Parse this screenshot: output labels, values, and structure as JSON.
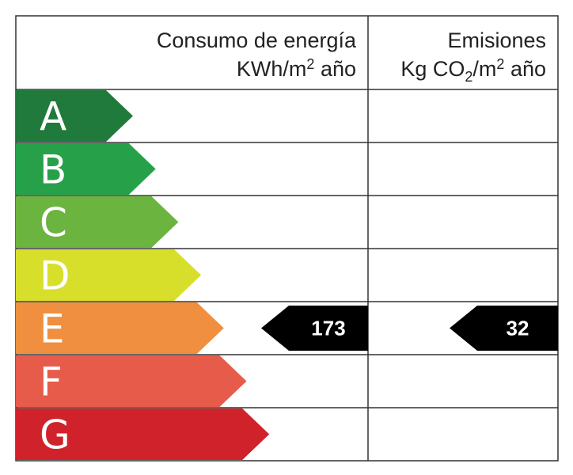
{
  "header": {
    "energy": {
      "line1": "Consumo de energía",
      "line2": [
        "KWh/m",
        "2",
        " año"
      ]
    },
    "emissions": {
      "line1": "Emisiones",
      "line2": [
        "Kg CO",
        "2",
        "/m",
        "2",
        " año"
      ]
    }
  },
  "classes": [
    {
      "letter": "A",
      "color": "#1f7a3b"
    },
    {
      "letter": "B",
      "color": "#27a149"
    },
    {
      "letter": "C",
      "color": "#6ab43f"
    },
    {
      "letter": "D",
      "color": "#d7df2b"
    },
    {
      "letter": "E",
      "color": "#ef8f3f"
    },
    {
      "letter": "F",
      "color": "#e65b49"
    },
    {
      "letter": "G",
      "color": "#d0222a"
    }
  ],
  "rating": {
    "letter": "E",
    "energy": 173,
    "emissions": 32
  }
}
